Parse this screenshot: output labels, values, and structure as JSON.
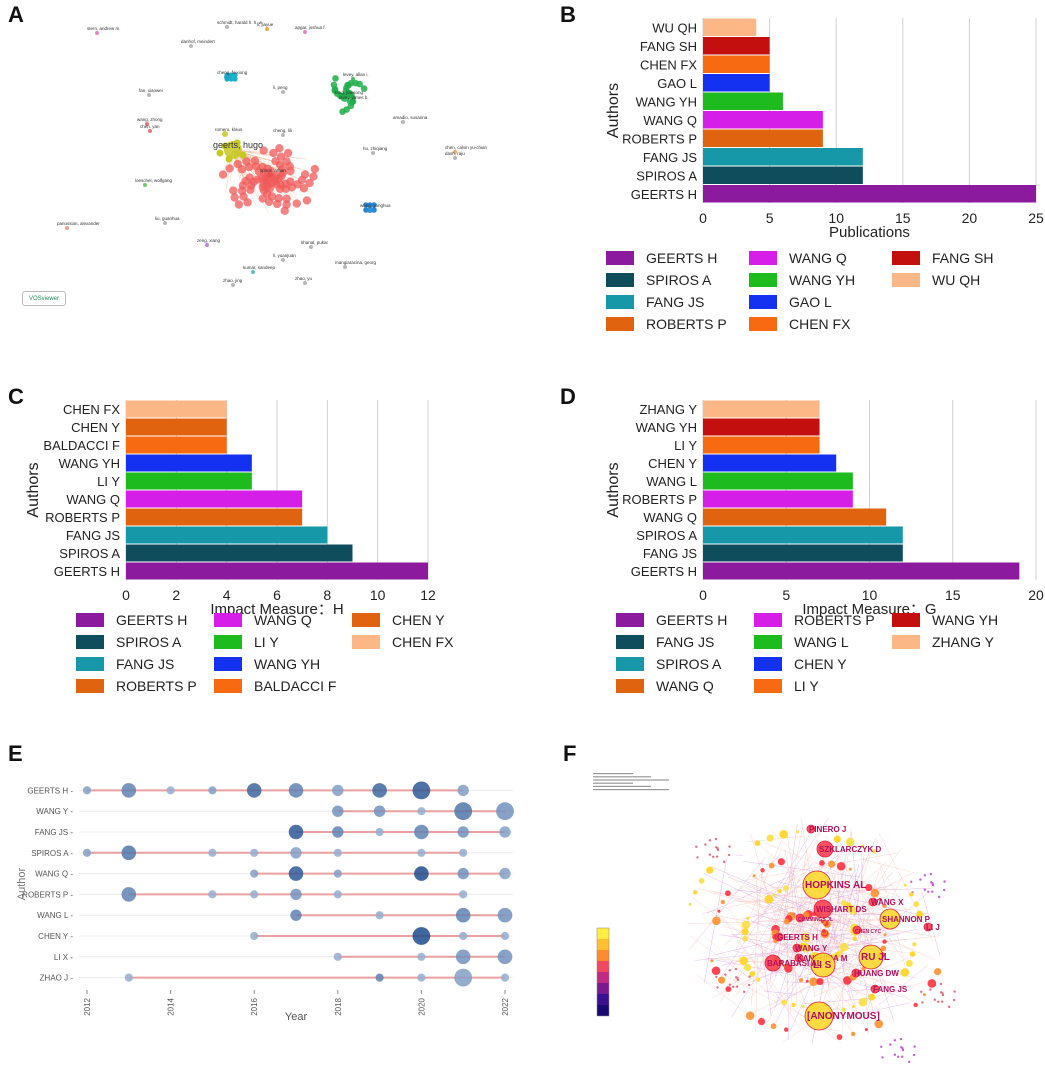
{
  "panel_labels": {
    "a": "A",
    "b": "B",
    "c": "C",
    "d": "D",
    "e": "E",
    "f": "F"
  },
  "chart_data": [
    {
      "id": "A",
      "type": "network",
      "title": "",
      "logo_text": "VOSviewer",
      "nodes": [
        {
          "label": "geerts, hugo",
          "color": "#c8c820",
          "size": "large"
        },
        {
          "label": "romero, klaus",
          "color": "#c8c820",
          "size": "small"
        },
        {
          "label": "spiros, athan",
          "color": "#e85050",
          "size": "small"
        },
        {
          "label": "fang, jiansong",
          "color": "#20b050",
          "size": "medium"
        },
        {
          "label": "cheng, feixiong",
          "color": "#20a0c0",
          "size": "small"
        },
        {
          "label": "wang, yonghua",
          "color": "#3090d0",
          "size": "small"
        },
        {
          "label": "loeschel, wolfgang",
          "color": "#60c060",
          "size": "tiny"
        },
        {
          "label": "panossian, alexander",
          "color": "#e09070",
          "size": "tiny"
        },
        {
          "label": "zeng, xiang",
          "color": "#b070d0",
          "size": "tiny"
        },
        {
          "label": "kumar, sandeep",
          "color": "#50b0b0",
          "size": "tiny"
        },
        {
          "label": "zhao, jing",
          "color": "#aaaaaa",
          "size": "tiny"
        },
        {
          "label": "zhao, yu",
          "color": "#aaaaaa",
          "size": "tiny"
        },
        {
          "label": "khanal, pukar",
          "color": "#aaaaaa",
          "size": "tiny"
        },
        {
          "label": "li, yuanjuan",
          "color": "#aaaaaa",
          "size": "tiny"
        },
        {
          "label": "mangiaracina, georg",
          "color": "#aaaaaa",
          "size": "tiny"
        },
        {
          "label": "liu, guanhua",
          "color": "#aaaaaa",
          "size": "tiny"
        },
        {
          "label": "hu, zhiqiang",
          "color": "#aaaaaa",
          "size": "tiny"
        },
        {
          "label": "chen, calvin yu-chian",
          "color": "#e0a050",
          "size": "tiny"
        },
        {
          "label": "amadio, susanna",
          "color": "#aaaaaa",
          "size": "tiny"
        },
        {
          "label": "wang, zhong",
          "color": "#e06060",
          "size": "tiny"
        },
        {
          "label": "chen, yan",
          "color": "#e06060",
          "size": "tiny"
        },
        {
          "label": "fan, xiaowei",
          "color": "#aaaaaa",
          "size": "tiny"
        },
        {
          "label": "li, peng",
          "color": "#aaaaaa",
          "size": "tiny"
        },
        {
          "label": "li, jiayue",
          "color": "#e0a030",
          "size": "tiny"
        },
        {
          "label": "danhof, meindert",
          "color": "#aaaaaa",
          "size": "tiny"
        },
        {
          "label": "schmidt, harald h. h. w.",
          "color": "#aaaaaa",
          "size": "tiny"
        },
        {
          "label": "apgar, joshua f.",
          "color": "#e070c0",
          "size": "tiny"
        },
        {
          "label": "stern, andrew m.",
          "color": "#e070c0",
          "size": "tiny"
        },
        {
          "label": "levey, allan i.",
          "color": "#20b050",
          "size": "tiny"
        },
        {
          "label": "levey, james b.",
          "color": "#20b050",
          "size": "tiny"
        },
        {
          "label": "cheng, lili",
          "color": "#aaaaaa",
          "size": "tiny"
        },
        {
          "label": "dash, raju",
          "color": "#aaaaaa",
          "size": "tiny"
        }
      ]
    },
    {
      "id": "B",
      "type": "bar",
      "orientation": "horizontal",
      "categories": [
        "GEERTS H",
        "SPIROS A",
        "FANG JS",
        "ROBERTS P",
        "WANG Q",
        "WANG YH",
        "GAO L",
        "CHEN FX",
        "FANG SH",
        "WU QH"
      ],
      "values": [
        25,
        12,
        12,
        9,
        9,
        6,
        5,
        5,
        5,
        4
      ],
      "colors": [
        "#8B1A9E",
        "#0F4C5C",
        "#1698A8",
        "#E06410",
        "#D51EE8",
        "#1DBB1D",
        "#1430F0",
        "#F76A12",
        "#C40F0F",
        "#FBB886"
      ],
      "xlabel": "Publications",
      "ylabel": "Authors",
      "xlim": [
        0,
        25
      ],
      "xticks": [
        0,
        5,
        10,
        15,
        20,
        25
      ],
      "legend": [
        "GEERTS H",
        "SPIROS A",
        "FANG JS",
        "ROBERTS P",
        "WANG Q",
        "WANG YH",
        "GAO L",
        "CHEN FX",
        "FANG SH",
        "WU QH"
      ]
    },
    {
      "id": "C",
      "type": "bar",
      "orientation": "horizontal",
      "categories": [
        "GEERTS H",
        "SPIROS A",
        "FANG JS",
        "ROBERTS P",
        "WANG Q",
        "LI Y",
        "WANG YH",
        "BALDACCI F",
        "CHEN Y",
        "CHEN FX"
      ],
      "values": [
        12,
        9,
        8,
        7,
        7,
        5,
        5,
        4,
        4,
        4
      ],
      "colors": [
        "#8B1A9E",
        "#0F4C5C",
        "#1698A8",
        "#E06410",
        "#D51EE8",
        "#1DBB1D",
        "#1430F0",
        "#F76A12",
        "#E06410",
        "#FBB886"
      ],
      "xlabel": "Impact Measure：H",
      "ylabel": "Authors",
      "xlim": [
        0,
        12
      ],
      "xticks": [
        0,
        2,
        4,
        6,
        8,
        10,
        12
      ],
      "legend": [
        "GEERTS H",
        "SPIROS A",
        "FANG JS",
        "ROBERTS P",
        "WANG Q",
        "LI Y",
        "WANG YH",
        "BALDACCI F",
        "CHEN Y",
        "CHEN FX"
      ]
    },
    {
      "id": "D",
      "type": "bar",
      "orientation": "horizontal",
      "categories": [
        "GEERTS H",
        "FANG JS",
        "SPIROS A",
        "WANG Q",
        "ROBERTS P",
        "WANG L",
        "CHEN Y",
        "LI Y",
        "WANG YH",
        "ZHANG Y"
      ],
      "values": [
        19,
        12,
        12,
        11,
        9,
        9,
        8,
        7,
        7,
        7
      ],
      "colors": [
        "#8B1A9E",
        "#0F4C5C",
        "#1698A8",
        "#E06410",
        "#D51EE8",
        "#1DBB1D",
        "#1430F0",
        "#F76A12",
        "#C40F0F",
        "#FBB886"
      ],
      "xlabel": "Impact Measure：G",
      "ylabel": "Authors",
      "xlim": [
        0,
        20
      ],
      "xticks": [
        0,
        5,
        10,
        15,
        20
      ],
      "legend": [
        "GEERTS H",
        "FANG JS",
        "SPIROS A",
        "WANG Q",
        "ROBERTS P",
        "WANG L",
        "CHEN Y",
        "LI Y",
        "WANG YH",
        "ZHANG Y"
      ]
    },
    {
      "id": "E",
      "type": "timeline-scatter",
      "authors": [
        "GEERTS H",
        "WANG Y",
        "FANG JS",
        "SPIROS A",
        "WANG Q",
        "ROBERTS P",
        "WANG L",
        "CHEN Y",
        "LI X",
        "ZHAO J"
      ],
      "x": [
        2012,
        2013,
        2014,
        2015,
        2016,
        2017,
        2018,
        2019,
        2020,
        2021,
        2022
      ],
      "xticks": [
        2012,
        2014,
        2016,
        2018,
        2020,
        2022
      ],
      "xlabel": "Year",
      "ylabel": "Author",
      "points": [
        {
          "a": 0,
          "years": [
            2012,
            2013,
            2014,
            2015,
            2016,
            2017,
            2018,
            2019,
            2020,
            2021
          ],
          "sizes": [
            1,
            3,
            1,
            1,
            3,
            3,
            2,
            3,
            4,
            2
          ],
          "shades": [
            0.4,
            0.6,
            0.3,
            0.4,
            0.8,
            0.6,
            0.4,
            0.8,
            0.9,
            0.4
          ]
        },
        {
          "a": 1,
          "years": [
            2018,
            2019,
            2020,
            2021,
            2022
          ],
          "sizes": [
            2,
            2,
            1,
            4,
            4
          ],
          "shades": [
            0.5,
            0.5,
            0.3,
            0.7,
            0.5
          ]
        },
        {
          "a": 2,
          "years": [
            2017,
            2018,
            2019,
            2020,
            2021,
            2022
          ],
          "sizes": [
            3,
            2,
            1,
            3,
            2,
            2
          ],
          "shades": [
            0.9,
            0.6,
            0.3,
            0.6,
            0.5,
            0.4
          ]
        },
        {
          "a": 3,
          "years": [
            2012,
            2013,
            2015,
            2016,
            2017,
            2018,
            2020,
            2021
          ],
          "sizes": [
            1,
            3,
            1,
            1,
            2,
            1,
            1,
            1
          ],
          "shades": [
            0.4,
            0.7,
            0.3,
            0.3,
            0.4,
            0.3,
            0.3,
            0.3
          ]
        },
        {
          "a": 4,
          "years": [
            2016,
            2017,
            2018,
            2020,
            2021,
            2022
          ],
          "sizes": [
            1,
            3,
            1,
            3,
            2,
            2
          ],
          "shades": [
            0.4,
            0.9,
            0.4,
            1.0,
            0.5,
            0.4
          ]
        },
        {
          "a": 5,
          "years": [
            2013,
            2015,
            2016,
            2017,
            2018,
            2021
          ],
          "sizes": [
            3,
            1,
            1,
            2,
            1,
            1
          ],
          "shades": [
            0.6,
            0.3,
            0.3,
            0.5,
            0.3,
            0.3
          ]
        },
        {
          "a": 6,
          "years": [
            2017,
            2019,
            2021,
            2022
          ],
          "sizes": [
            2,
            1,
            3,
            3
          ],
          "shades": [
            0.6,
            0.3,
            0.6,
            0.5
          ]
        },
        {
          "a": 7,
          "years": [
            2016,
            2020,
            2021,
            2022
          ],
          "sizes": [
            1,
            4,
            1,
            1
          ],
          "shades": [
            0.3,
            1.0,
            0.3,
            0.3
          ]
        },
        {
          "a": 8,
          "years": [
            2018,
            2020,
            2021,
            2022
          ],
          "sizes": [
            1,
            1,
            3,
            3
          ],
          "shades": [
            0.3,
            0.3,
            0.5,
            0.5
          ]
        },
        {
          "a": 9,
          "years": [
            2013,
            2019,
            2020,
            2021,
            2022
          ],
          "sizes": [
            1,
            1,
            1,
            4,
            1
          ],
          "shades": [
            0.3,
            0.6,
            0.3,
            0.4,
            0.3
          ]
        }
      ]
    },
    {
      "id": "F",
      "type": "network",
      "labels": [
        "PINERO J",
        "SZKLARCZYK D",
        "HOPKINS AL",
        "WANG X",
        "WISHART DS",
        "SHANNON P",
        "CUMMINGS JL",
        "LI J",
        "CHEN CYC",
        "GEERTS H",
        "WANG Y",
        "KANEHISA M",
        "RU JL",
        "LI S",
        "BARABASI AL",
        "HUANG DW",
        "FANG JS",
        "[ANONYMOUS]"
      ]
    }
  ]
}
